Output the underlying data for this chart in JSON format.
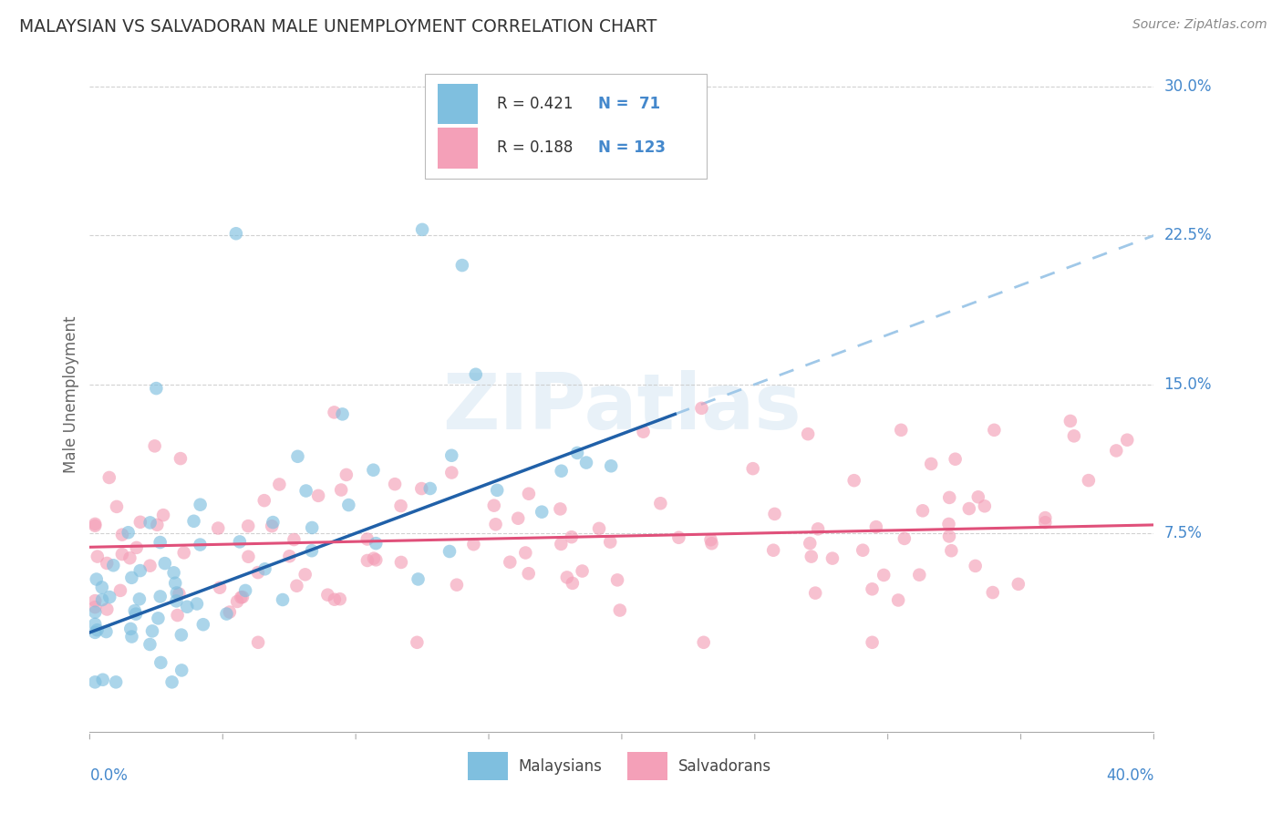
{
  "title": "MALAYSIAN VS SALVADORAN MALE UNEMPLOYMENT CORRELATION CHART",
  "source": "Source: ZipAtlas.com",
  "ylabel": "Male Unemployment",
  "xlim": [
    0.0,
    0.4
  ],
  "ylim": [
    -0.025,
    0.315
  ],
  "watermark": "ZIPatlas",
  "blue_color": "#7fbfdf",
  "pink_color": "#f4a0b8",
  "blue_line_color": "#2060a8",
  "pink_line_color": "#e0507a",
  "dashed_line_color": "#a0c8e8",
  "text_color": "#4488cc",
  "axis_text_color": "#4488cc",
  "grid_color": "#cccccc",
  "background_color": "#ffffff",
  "blue_slope": 0.5,
  "blue_intercept": 0.025,
  "pink_slope": 0.028,
  "pink_intercept": 0.068,
  "dash_slope": 0.5,
  "dash_intercept": 0.025,
  "ytick_vals": [
    0.075,
    0.15,
    0.225,
    0.3
  ],
  "ytick_labels": [
    "7.5%",
    "15.0%",
    "22.5%",
    "30.0%"
  ],
  "xtick_vals": [
    0.0,
    0.05,
    0.1,
    0.15,
    0.2,
    0.25,
    0.3,
    0.35,
    0.4
  ],
  "seed": 12345
}
